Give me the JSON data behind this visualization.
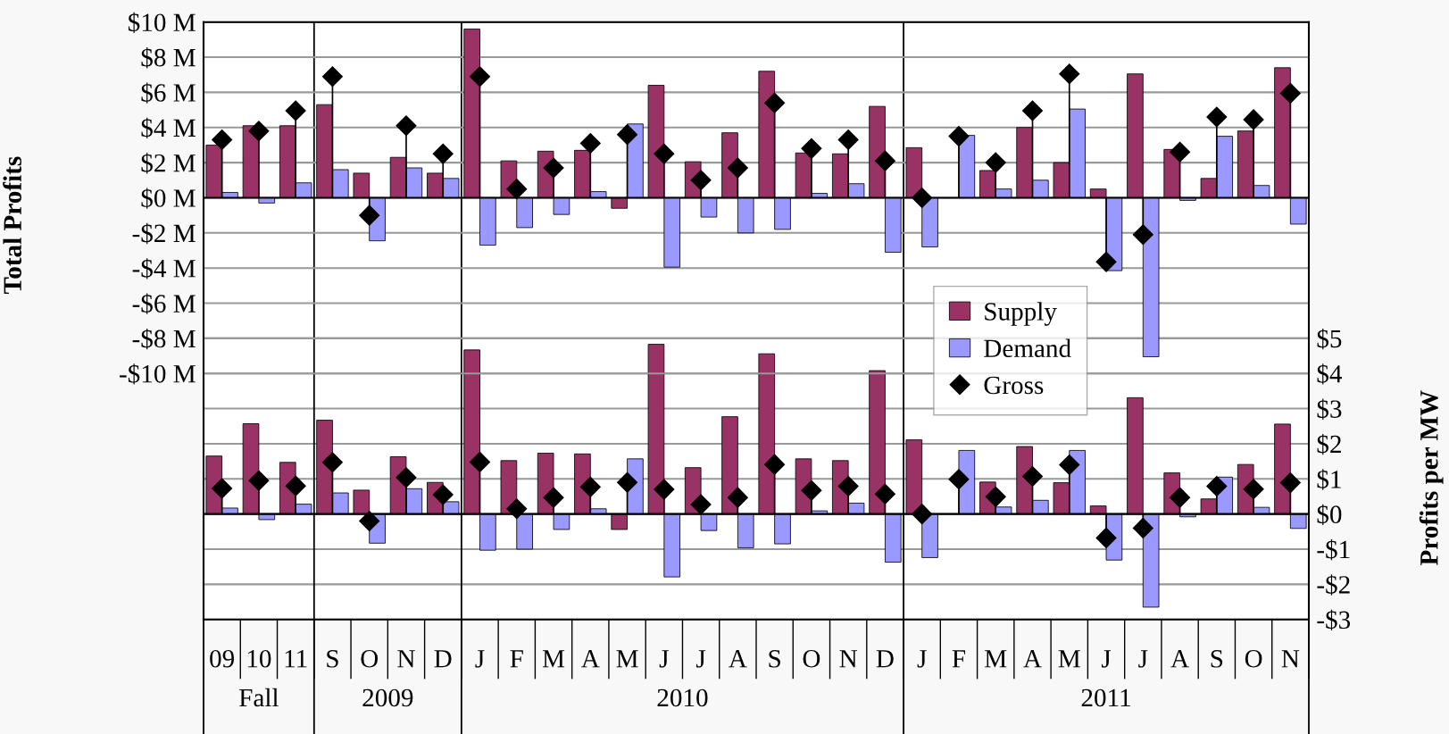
{
  "chart_data": [
    {
      "type": "bar",
      "ylabel": "Total Profits",
      "categories": [
        null,
        null,
        null,
        null,
        null,
        null,
        null,
        null,
        null,
        null,
        null,
        null,
        null,
        null,
        null,
        null,
        null,
        null,
        null,
        null,
        null,
        null,
        null,
        null,
        null,
        null,
        null,
        null,
        null,
        null
      ],
      "series": [
        {
          "name": "Supply",
          "color": "#993366",
          "values": [
            3.0,
            4.1,
            4.1,
            5.3,
            1.4,
            2.3,
            1.4,
            9.6,
            2.1,
            2.65,
            2.7,
            -0.6,
            6.4,
            2.05,
            3.7,
            7.2,
            2.55,
            2.5,
            5.2,
            2.85,
            null,
            1.55,
            4.0,
            2.0,
            0.5,
            7.05,
            2.75,
            1.1,
            3.8,
            7.4
          ]
        },
        {
          "name": "Demand",
          "color": "#9999ff",
          "values": [
            0.3,
            -0.3,
            0.85,
            1.6,
            -2.45,
            1.7,
            1.1,
            -2.7,
            -1.7,
            -0.95,
            0.35,
            4.2,
            -3.95,
            -1.1,
            -2.0,
            -1.8,
            0.25,
            0.8,
            -3.1,
            -2.8,
            3.55,
            0.5,
            1.0,
            5.05,
            -4.15,
            -9.05,
            -0.15,
            3.5,
            0.7,
            -1.5
          ]
        },
        {
          "name": "Gross",
          "type": "lollipop",
          "color": "#000000",
          "values": [
            3.3,
            3.8,
            4.95,
            6.9,
            -1.0,
            4.1,
            2.5,
            6.9,
            0.5,
            1.7,
            3.1,
            3.6,
            2.5,
            1.0,
            1.7,
            5.4,
            2.8,
            3.3,
            2.1,
            0.0,
            3.5,
            2.0,
            4.95,
            7.05,
            -3.65,
            -2.1,
            2.6,
            4.6,
            4.45,
            5.95
          ]
        }
      ],
      "ylim": [
        -24,
        10
      ],
      "yticks": [
        {
          "value": 10,
          "label": "$10 M"
        },
        {
          "value": 8,
          "label": "$8 M"
        },
        {
          "value": 6,
          "label": "$6 M"
        },
        {
          "value": 4,
          "label": "$4 M"
        },
        {
          "value": 2,
          "label": "$2 M"
        },
        {
          "value": 0,
          "label": "$0 M"
        },
        {
          "value": -2,
          "label": "-$2 M"
        },
        {
          "value": -4,
          "label": "-$4 M"
        },
        {
          "value": -6,
          "label": "-$6 M"
        },
        {
          "value": -8,
          "label": "-$8 M"
        },
        {
          "value": -10,
          "label": "-$10 M"
        }
      ],
      "grid": "y",
      "legend": "center right",
      "marker": "diamond",
      "tick_labels": "y"
    },
    {
      "type": "bar",
      "ylabel": "Profits per MW",
      "categories": [
        "09",
        "10",
        "11",
        "S",
        "O",
        "N",
        "D",
        "J",
        "F",
        "M",
        "A",
        "M",
        "J",
        "J",
        "A",
        "S",
        "O",
        "N",
        "D",
        "J",
        "F",
        "M",
        "A",
        "M",
        "J",
        "J",
        "A",
        "S",
        "O",
        "N"
      ],
      "series": [
        {
          "color": "#993366",
          "values": [
            1.65,
            2.57,
            1.47,
            2.67,
            0.68,
            1.63,
            0.9,
            4.67,
            1.52,
            1.73,
            1.71,
            -0.44,
            4.83,
            1.32,
            2.77,
            4.56,
            1.57,
            1.52,
            4.08,
            2.11,
            null,
            0.91,
            1.92,
            0.89,
            0.23,
            3.31,
            1.17,
            0.43,
            1.41,
            2.56
          ]
        },
        {
          "color": "#9999ff",
          "values": [
            0.17,
            -0.16,
            0.28,
            0.6,
            -0.83,
            0.72,
            0.35,
            -1.03,
            -1.0,
            -0.44,
            0.15,
            1.57,
            -1.79,
            -0.47,
            -0.96,
            -0.85,
            0.09,
            0.31,
            -1.37,
            -1.24,
            1.81,
            0.2,
            0.39,
            1.81,
            -1.31,
            -2.65,
            -0.08,
            1.05,
            0.19,
            -0.41
          ]
        },
        {
          "type": "lollipop",
          "color": "#000000",
          "values": [
            0.73,
            0.95,
            0.8,
            1.47,
            -0.2,
            1.04,
            0.55,
            1.48,
            0.15,
            0.47,
            0.77,
            0.9,
            0.7,
            0.27,
            0.47,
            1.41,
            0.67,
            0.79,
            0.57,
            0.0,
            0.99,
            0.49,
            1.07,
            1.4,
            -0.68,
            -0.4,
            0.47,
            0.79,
            0.71,
            0.89
          ]
        }
      ],
      "ylim": [
        -3,
        14
      ],
      "yticks": [
        {
          "value": 5,
          "label": "$5"
        },
        {
          "value": 4,
          "label": "$4"
        },
        {
          "value": 3,
          "label": "$3"
        },
        {
          "value": 2,
          "label": "$2"
        },
        {
          "value": 1,
          "label": "$1"
        },
        {
          "value": 0,
          "label": "$0"
        },
        {
          "value": -1,
          "label": "-$1"
        },
        {
          "value": -2,
          "label": "-$2"
        },
        {
          "value": -3,
          "label": "-$3"
        }
      ],
      "annotations": [
        "Fall",
        "2009",
        "2010",
        "2011"
      ],
      "grid": "y",
      "marker": "diamond"
    }
  ]
}
